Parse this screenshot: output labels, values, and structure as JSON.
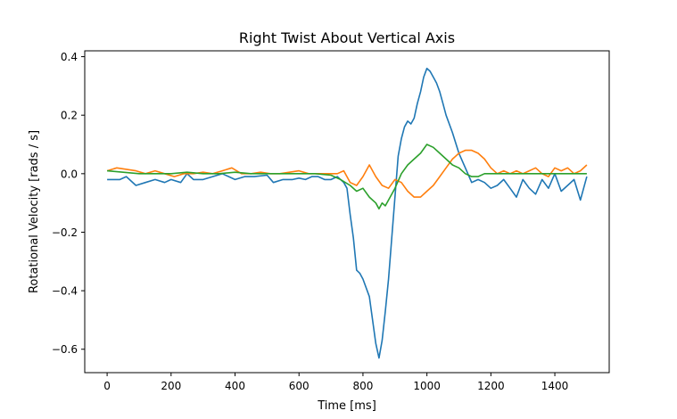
{
  "chart_data": {
    "type": "line",
    "title": "Right Twist About Vertical Axis",
    "xlabel": "Time [ms]",
    "ylabel": "Rotational Velocity [rads / s]",
    "xlim": [
      -70,
      1570
    ],
    "ylim": [
      -0.68,
      0.42
    ],
    "xticks": [
      0,
      200,
      400,
      600,
      800,
      1000,
      1200,
      1400
    ],
    "yticks": [
      0.4,
      0.2,
      0.0,
      -0.2,
      -0.4,
      -0.6
    ],
    "ytick_labels": [
      "0.4",
      "0.2",
      "0.0",
      "−0.2",
      "−0.4",
      "−0.6"
    ],
    "grid": false,
    "legend": "none",
    "series": [
      {
        "color": "#1f77b4",
        "x": [
          0,
          40,
          60,
          90,
          120,
          150,
          180,
          200,
          230,
          250,
          270,
          300,
          330,
          360,
          400,
          430,
          460,
          500,
          520,
          550,
          580,
          600,
          620,
          640,
          660,
          680,
          700,
          720,
          740,
          750,
          760,
          770,
          780,
          790,
          800,
          820,
          840,
          850,
          860,
          870,
          880,
          890,
          900,
          910,
          920,
          930,
          940,
          950,
          960,
          970,
          980,
          990,
          1000,
          1010,
          1020,
          1030,
          1040,
          1050,
          1060,
          1080,
          1100,
          1120,
          1140,
          1160,
          1180,
          1200,
          1220,
          1240,
          1260,
          1280,
          1300,
          1320,
          1340,
          1360,
          1380,
          1400,
          1420,
          1440,
          1460,
          1480,
          1500
        ],
        "y": [
          -0.02,
          -0.02,
          -0.01,
          -0.04,
          -0.03,
          -0.02,
          -0.03,
          -0.02,
          -0.03,
          0.0,
          -0.02,
          -0.02,
          -0.01,
          0.0,
          -0.02,
          -0.01,
          -0.01,
          -0.005,
          -0.03,
          -0.02,
          -0.02,
          -0.015,
          -0.02,
          -0.01,
          -0.01,
          -0.02,
          -0.02,
          -0.01,
          -0.03,
          -0.05,
          -0.14,
          -0.22,
          -0.33,
          -0.34,
          -0.36,
          -0.42,
          -0.58,
          -0.63,
          -0.57,
          -0.47,
          -0.36,
          -0.22,
          -0.08,
          0.06,
          0.12,
          0.16,
          0.18,
          0.17,
          0.19,
          0.24,
          0.28,
          0.33,
          0.36,
          0.35,
          0.33,
          0.31,
          0.28,
          0.24,
          0.2,
          0.14,
          0.07,
          0.02,
          -0.03,
          -0.02,
          -0.03,
          -0.05,
          -0.04,
          -0.02,
          -0.05,
          -0.08,
          -0.02,
          -0.05,
          -0.07,
          -0.02,
          -0.05,
          0.0,
          -0.06,
          -0.04,
          -0.02,
          -0.09,
          -0.01
        ]
      },
      {
        "color": "#ff7f0e",
        "x": [
          0,
          30,
          60,
          90,
          120,
          150,
          180,
          210,
          240,
          270,
          300,
          330,
          360,
          390,
          420,
          450,
          480,
          510,
          540,
          570,
          600,
          630,
          660,
          690,
          720,
          740,
          760,
          780,
          800,
          820,
          840,
          860,
          880,
          900,
          920,
          940,
          960,
          980,
          1000,
          1020,
          1040,
          1060,
          1080,
          1100,
          1120,
          1140,
          1160,
          1180,
          1200,
          1220,
          1240,
          1260,
          1280,
          1300,
          1320,
          1340,
          1360,
          1380,
          1400,
          1420,
          1440,
          1460,
          1480,
          1500
        ],
        "y": [
          0.01,
          0.02,
          0.015,
          0.01,
          0.0,
          0.01,
          0.0,
          -0.01,
          0.0,
          0.0,
          0.005,
          0.0,
          0.01,
          0.02,
          0.0,
          0.0,
          0.005,
          0.0,
          0.0,
          0.005,
          0.01,
          0.0,
          0.0,
          0.0,
          0.0,
          0.01,
          -0.03,
          -0.04,
          -0.01,
          0.03,
          -0.01,
          -0.04,
          -0.05,
          -0.02,
          -0.03,
          -0.06,
          -0.08,
          -0.08,
          -0.06,
          -0.04,
          -0.01,
          0.02,
          0.05,
          0.07,
          0.08,
          0.08,
          0.07,
          0.05,
          0.02,
          0.0,
          0.01,
          0.0,
          0.01,
          0.0,
          0.01,
          0.02,
          0.0,
          -0.01,
          0.02,
          0.01,
          0.02,
          0.0,
          0.01,
          0.03
        ]
      },
      {
        "color": "#2ca02c",
        "x": [
          0,
          50,
          100,
          150,
          200,
          250,
          300,
          350,
          400,
          450,
          500,
          550,
          600,
          650,
          700,
          730,
          760,
          780,
          800,
          820,
          840,
          850,
          860,
          870,
          880,
          900,
          920,
          940,
          960,
          980,
          1000,
          1020,
          1040,
          1060,
          1080,
          1100,
          1120,
          1140,
          1160,
          1180,
          1200,
          1250,
          1300,
          1350,
          1400,
          1450,
          1500
        ],
        "y": [
          0.01,
          0.005,
          0.0,
          0.0,
          0.0,
          0.005,
          0.0,
          0.0,
          0.005,
          0.0,
          0.0,
          0.0,
          0.0,
          0.0,
          -0.005,
          -0.02,
          -0.04,
          -0.06,
          -0.05,
          -0.08,
          -0.1,
          -0.12,
          -0.1,
          -0.11,
          -0.09,
          -0.05,
          0.0,
          0.03,
          0.05,
          0.07,
          0.1,
          0.09,
          0.07,
          0.05,
          0.03,
          0.02,
          0.0,
          -0.01,
          -0.01,
          0.0,
          0.0,
          0.0,
          0.0,
          0.0,
          0.0,
          0.0,
          0.0
        ]
      }
    ]
  }
}
